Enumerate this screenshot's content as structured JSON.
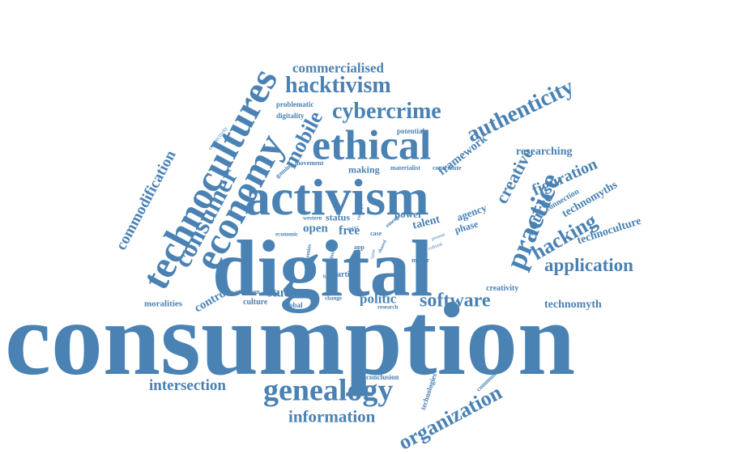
{
  "word_cloud": {
    "color": "#4a82b4",
    "background": "#ffffff",
    "words": [
      {
        "id": "consumption",
        "text": "consumption"
      },
      {
        "id": "digital",
        "text": "digital"
      },
      {
        "id": "activism",
        "text": "activism"
      },
      {
        "id": "technocultures",
        "text": "technocultures"
      },
      {
        "id": "economy",
        "text": "economy"
      },
      {
        "id": "consumer",
        "text": "consumer"
      },
      {
        "id": "ethical",
        "text": "ethical"
      },
      {
        "id": "genealogy",
        "text": "genealogy"
      },
      {
        "id": "practice",
        "text": "practice"
      },
      {
        "id": "authenticity",
        "text": "authenticity"
      },
      {
        "id": "hacktivism",
        "text": "hacktivism"
      },
      {
        "id": "cybercrime",
        "text": "cybercrime"
      },
      {
        "id": "software",
        "text": "software"
      },
      {
        "id": "organization",
        "text": "organization"
      },
      {
        "id": "hacking",
        "text": "hacking"
      },
      {
        "id": "application",
        "text": "application"
      },
      {
        "id": "commodification",
        "text": "commodification"
      },
      {
        "id": "mobile",
        "text": "mobile"
      },
      {
        "id": "information",
        "text": "information"
      },
      {
        "id": "intersection",
        "text": "intersection"
      },
      {
        "id": "figuration",
        "text": "figuration"
      },
      {
        "id": "creative",
        "text": "creative"
      },
      {
        "id": "source",
        "text": "source"
      },
      {
        "id": "commercialised",
        "text": "commercialised"
      },
      {
        "id": "technomyths",
        "text": "technomyths"
      },
      {
        "id": "technoculture",
        "text": "technoculture"
      },
      {
        "id": "technomyth",
        "text": "technomyth"
      },
      {
        "id": "researching",
        "text": "researching"
      },
      {
        "id": "framework",
        "text": "framework"
      },
      {
        "id": "politic",
        "text": "politic"
      },
      {
        "id": "studies",
        "text": "studies"
      },
      {
        "id": "control",
        "text": "control"
      },
      {
        "id": "power",
        "text": "power"
      },
      {
        "id": "open",
        "text": "open"
      },
      {
        "id": "free",
        "text": "free"
      },
      {
        "id": "status",
        "text": "status"
      },
      {
        "id": "talent",
        "text": "talent"
      },
      {
        "id": "agency",
        "text": "agency"
      },
      {
        "id": "phase",
        "text": "phase"
      },
      {
        "id": "making",
        "text": "making"
      },
      {
        "id": "problematic",
        "text": "problematic"
      },
      {
        "id": "digitality",
        "text": "digitality"
      },
      {
        "id": "moralities",
        "text": "moralities"
      },
      {
        "id": "culture",
        "text": "culture"
      },
      {
        "id": "global",
        "text": "global"
      },
      {
        "id": "article",
        "text": "article"
      },
      {
        "id": "potential",
        "text": "potential"
      },
      {
        "id": "movement",
        "text": "movement"
      },
      {
        "id": "materialist",
        "text": "materialist"
      },
      {
        "id": "contribute",
        "text": "contribute"
      },
      {
        "id": "creativity",
        "text": "creativity"
      },
      {
        "id": "connection",
        "text": "connection"
      },
      {
        "id": "conclusion",
        "text": "conclusion"
      },
      {
        "id": "technologies",
        "text": "technologies"
      },
      {
        "id": "community",
        "text": "community"
      },
      {
        "id": "connectivity",
        "text": "connectivity"
      },
      {
        "id": "gaming",
        "text": "gaming"
      },
      {
        "id": "western",
        "text": "western"
      },
      {
        "id": "economic",
        "text": "economic"
      },
      {
        "id": "economies",
        "text": "economies"
      },
      {
        "id": "attention",
        "text": "attention"
      },
      {
        "id": "maker",
        "text": "maker"
      },
      {
        "id": "research",
        "text": "research"
      },
      {
        "id": "change",
        "text": "change"
      },
      {
        "id": "emerge",
        "text": "emerge"
      },
      {
        "id": "case",
        "text": "case"
      },
      {
        "id": "concept",
        "text": "concept"
      },
      {
        "id": "app",
        "text": "app"
      },
      {
        "id": "political",
        "text": "political"
      },
      {
        "id": "present",
        "text": "present"
      },
      {
        "id": "cultural",
        "text": "cultural"
      },
      {
        "id": "paper",
        "text": "paper"
      },
      {
        "id": "shared",
        "text": "shared"
      },
      {
        "id": "issue",
        "text": "issue"
      },
      {
        "id": "broad",
        "text": "broad"
      }
    ]
  }
}
